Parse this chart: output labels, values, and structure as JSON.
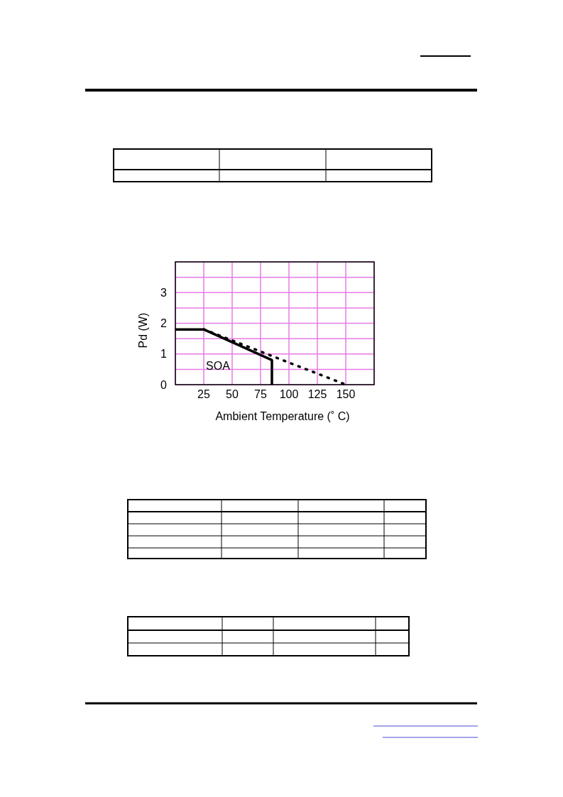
{
  "chart_data": {
    "type": "line",
    "xlabel": "Ambient Temperature (˚ C)",
    "ylabel": "Pd (W)",
    "xlim": [
      0,
      175
    ],
    "ylim": [
      0,
      4
    ],
    "xticks": [
      {
        "value": 0,
        "label": null
      },
      25,
      50,
      75,
      100,
      125,
      150,
      {
        "value": 175,
        "label": null
      }
    ],
    "yticks": [
      0,
      {
        "value": 0.5,
        "label": null
      },
      1,
      {
        "value": 1.5,
        "label": null
      },
      2,
      {
        "value": 2.5,
        "label": null
      },
      3,
      {
        "value": 3.5,
        "label": null
      },
      {
        "value": 4,
        "label": null
      }
    ],
    "grid": true,
    "marker": "none",
    "series": [
      {
        "color": "#000000",
        "line_style": "solid",
        "x": [
          0,
          25,
          85,
          85
        ],
        "values": [
          1.8,
          1.8,
          0.8,
          0
        ]
      },
      {
        "color": "#000000",
        "line_style": "dotted",
        "x": [
          25,
          150
        ],
        "values": [
          1.8,
          0
        ]
      }
    ],
    "annotations": [
      "SOA"
    ]
  }
}
